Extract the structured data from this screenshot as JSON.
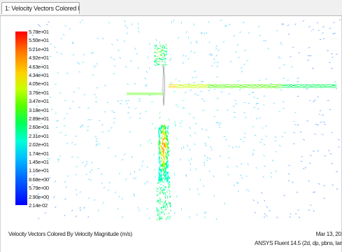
{
  "tab": {
    "label": "1: Velocity Vectors Colored B",
    "dropdown_glyph": "∨"
  },
  "logo": {
    "text": "ANSYS",
    "sub": "R14.5"
  },
  "colorbar": {
    "labels": [
      "5.78e+01",
      "5.50e+01",
      "5.21e+01",
      "4.92e+01",
      "4.63e+01",
      "4.34e+01",
      "4.05e+01",
      "3.76e+01",
      "3.47e+01",
      "3.18e+01",
      "2.89e+01",
      "2.60e+01",
      "2.31e+01",
      "2.02e+01",
      "1.74e+01",
      "1.45e+01",
      "1.16e+01",
      "8.68e+00",
      "5.79e+00",
      "2.90e+00",
      "2.14e-02"
    ],
    "colors": [
      "#ff0000",
      "#ff7a00",
      "#ffd200",
      "#c8ff00",
      "#55ff00",
      "#00ff5a",
      "#00ffd6",
      "#00bfff",
      "#006bff",
      "#0000ff"
    ]
  },
  "footer": {
    "title": "Velocity Vectors Colored By Velocity Magnitude (m/s)",
    "date": "Mar 13, 201",
    "version": "ANSYS Fluent 14.5 (2d, dp, pbns, lam"
  }
}
